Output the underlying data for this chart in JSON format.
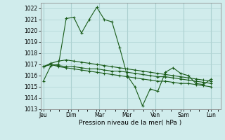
{
  "xlabel": "Pression niveau de la mer( hPa )",
  "background_color": "#d0ecec",
  "grid_color": "#b0d4d4",
  "line_color": "#1a5c1a",
  "ylim": [
    1013,
    1022.5
  ],
  "yticks": [
    1013,
    1014,
    1015,
    1016,
    1017,
    1018,
    1019,
    1020,
    1021,
    1022
  ],
  "xtick_labels": [
    "Jeu",
    "Dim",
    "Mar",
    "Mer",
    "Ven",
    "Sam",
    "Lun"
  ],
  "xtick_positions": [
    0,
    3,
    6,
    9,
    12,
    15,
    18
  ],
  "series": [
    [
      1015.5,
      1016.9,
      1017.0,
      1021.1,
      1021.2,
      1019.8,
      1021.0,
      1022.1,
      1021.0,
      1020.8,
      1018.5,
      1016.0,
      1015.0,
      1013.3,
      1014.8,
      1014.6,
      1016.3,
      1016.7,
      1016.2,
      1016.0,
      1015.3,
      1015.2,
      1015.7
    ],
    [
      1016.8,
      1017.1,
      1017.3,
      1017.4,
      1017.3,
      1017.2,
      1017.1,
      1017.0,
      1016.9,
      1016.8,
      1016.7,
      1016.6,
      1016.5,
      1016.4,
      1016.3,
      1016.2,
      1016.1,
      1016.0,
      1015.9,
      1015.8,
      1015.7,
      1015.6,
      1015.5
    ],
    [
      1016.8,
      1017.0,
      1016.9,
      1016.8,
      1016.8,
      1016.7,
      1016.6,
      1016.6,
      1016.5,
      1016.4,
      1016.4,
      1016.3,
      1016.2,
      1016.1,
      1016.0,
      1015.9,
      1015.9,
      1015.8,
      1015.7,
      1015.6,
      1015.5,
      1015.4,
      1015.3
    ],
    [
      1016.8,
      1017.0,
      1016.8,
      1016.7,
      1016.6,
      1016.5,
      1016.4,
      1016.3,
      1016.2,
      1016.1,
      1016.0,
      1015.9,
      1015.8,
      1015.7,
      1015.6,
      1015.5,
      1015.5,
      1015.4,
      1015.3,
      1015.3,
      1015.2,
      1015.1,
      1015.0
    ]
  ],
  "figsize": [
    3.2,
    2.0
  ],
  "dpi": 100
}
